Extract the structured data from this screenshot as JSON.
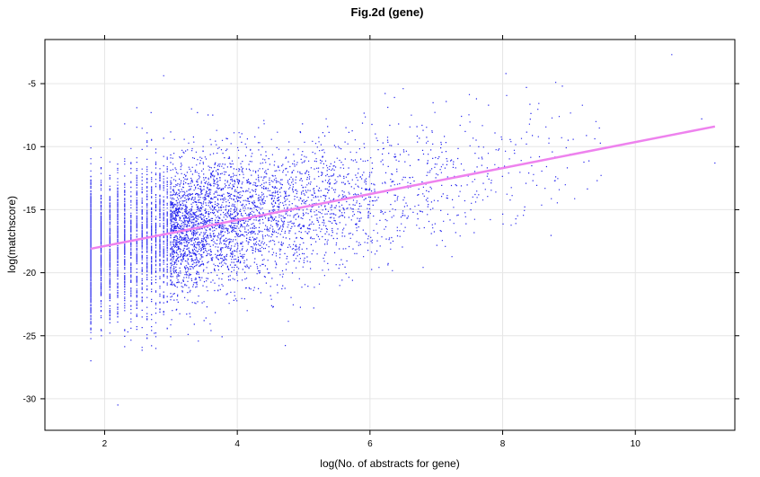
{
  "chart_data": {
    "type": "scatter",
    "title": "Fig.2d (gene)",
    "xlabel": "log(No. of abstracts for gene)",
    "ylabel": "log(matchscore)",
    "xlim": [
      1.1,
      11.5
    ],
    "ylim": [
      -32.5,
      -1.5
    ],
    "xticks": [
      2,
      4,
      6,
      8,
      10
    ],
    "yticks": [
      -30,
      -25,
      -20,
      -15,
      -10,
      -5
    ],
    "grid": true,
    "legend": "none",
    "colors": {
      "points": "#2222ee",
      "fit_line": "#ee82ee",
      "grid": "#e6e6e6",
      "frame": "#000000"
    },
    "series": [
      {
        "type": "scatter",
        "n_points_approx": 6000,
        "x_min": 1.79,
        "x_max": 11.2,
        "density_note": "dense vertical columns at discrete low x values (1.79-3.0), continuous spread above",
        "mean_line": {
          "x0": 1.79,
          "y0": -18.1,
          "x1": 11.2,
          "y1": -8.4
        },
        "spread_sd": 2.8,
        "outliers": [
          {
            "x": 10.55,
            "y": -2.7
          },
          {
            "x": 8.05,
            "y": -4.2
          },
          {
            "x": 8.8,
            "y": -4.9
          },
          {
            "x": 8.9,
            "y": -5.2
          },
          {
            "x": 6.5,
            "y": -5.4
          },
          {
            "x": 2.2,
            "y": -30.5
          },
          {
            "x": 1.95,
            "y": -25.0
          },
          {
            "x": 1.95,
            "y": -24.6
          },
          {
            "x": 2.35,
            "y": -24.7
          },
          {
            "x": 2.75,
            "y": -24.8
          },
          {
            "x": 3.5,
            "y": -23.8
          },
          {
            "x": 11.2,
            "y": -11.3
          },
          {
            "x": 11.0,
            "y": -7.8
          },
          {
            "x": 2.7,
            "y": -7.3
          },
          {
            "x": 3.4,
            "y": -7.3
          }
        ]
      },
      {
        "type": "line",
        "points": [
          {
            "x": 1.79,
            "y": -18.1
          },
          {
            "x": 11.2,
            "y": -8.4
          }
        ]
      }
    ]
  }
}
